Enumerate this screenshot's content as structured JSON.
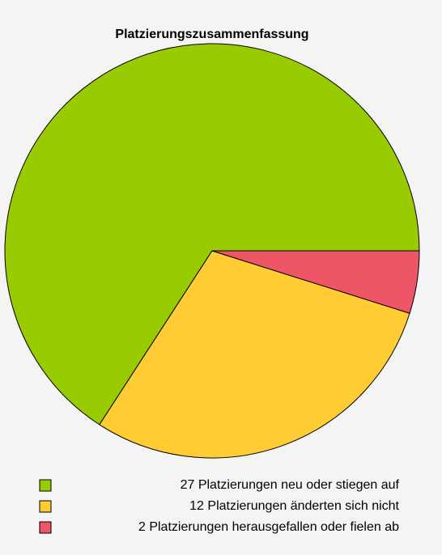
{
  "chart_data": {
    "type": "pie",
    "title": "Platzierungszusammenfassung",
    "categories": [
      "27 Platzierungen neu oder stiegen auf",
      "12 Platzierungen änderten sich nicht",
      "2 Platzierungen herausgefallen oder fielen ab"
    ],
    "values": [
      27,
      12,
      2
    ],
    "colors": [
      "#99cc00",
      "#ffcc33",
      "#ee5566"
    ]
  }
}
